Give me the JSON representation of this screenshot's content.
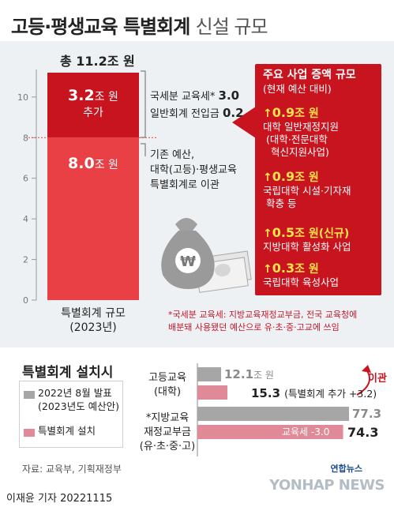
{
  "title": {
    "main": "고등·평생교육 특별회계",
    "sub": "신설 규모"
  },
  "main_bar": {
    "total_label": "총 11.2조 원",
    "top_amount": "3.2",
    "top_unit": "조 원",
    "top_caption": "추가",
    "bottom_amount": "8.0",
    "bottom_unit": "조 원",
    "top_color": "#c7141f",
    "bottom_color": "#e84045",
    "x_label_1": "특별회계 규모",
    "x_label_2": "(2023년)"
  },
  "annotations": {
    "add_line1_label": "국세분 교육세*",
    "add_line1_value": "3.0",
    "add_line2_label": "일반회계 전입금",
    "add_line2_value": "0.2",
    "base_line1": "기존 예산,",
    "base_line2": "대학(고등)·평생교육",
    "base_line3": "특별회계로 이관"
  },
  "panel": {
    "title": "주요 사업 증액 규모",
    "subtitle": "(현재 예산 대비)",
    "items": [
      {
        "amount": "0.9",
        "unit": "조 원",
        "extra": "",
        "desc1": "대학 일반재정지원",
        "desc2": "(대학·전문대학",
        "desc3": "혁신지원사업)"
      },
      {
        "amount": "0.9",
        "unit": "조 원",
        "extra": "",
        "desc1": "국립대학 시설·기자재",
        "desc2": "확충 등",
        "desc3": ""
      },
      {
        "amount": "0.5",
        "unit": "조 원",
        "extra": "(신규)",
        "desc1": "지방대학 활성화 사업",
        "desc2": "",
        "desc3": ""
      },
      {
        "amount": "0.3",
        "unit": "조 원",
        "extra": "",
        "desc1": "국립대학 육성사업",
        "desc2": "",
        "desc3": ""
      }
    ]
  },
  "footnote": {
    "line1": "*국세분 교육세: 지방교육재정교부금, 전국 교육청에",
    "line2": "배분돼 사용됐던 예산으로 유·초·중·고교에 쓰임"
  },
  "bottom": {
    "title": "특별회계 설치시",
    "legend": [
      {
        "label1": "2022년 8월 발표",
        "label2": "(2023년도 예산안)",
        "color": "#a6a6a6"
      },
      {
        "label1": "특별회계 설치",
        "label2": "",
        "color": "#df8a96"
      }
    ],
    "group1_label1": "고등교육",
    "group1_label2": "(대학)",
    "group2_label1": "*지방교육",
    "group2_label2": "재정교부금",
    "group2_label3": "(유·초·중·고)",
    "g1_gray_value": "12.1",
    "g1_gray_unit": "조 원",
    "g1_pink_value": "15.3",
    "g1_pink_note": "(특별회계 추가 +3.2)",
    "g2_gray_value": "77.3",
    "g2_pink_value": "74.3",
    "g2_pink_inner": "교육세 -3.0",
    "transfer_label": "이관",
    "source": "자료: 교육부, 기획재정부",
    "byline": "이재윤 기자  20221115"
  },
  "logo": {
    "kor": "연합뉴스",
    "eng": "YONHAP NEWS"
  },
  "chart_data": [
    {
      "type": "bar",
      "stacked": true,
      "categories": [
        "특별회계 규모 (2023년)"
      ],
      "series": [
        {
          "name": "",
          "values": [
            8.0
          ]
        },
        {
          "name": "추가",
          "values": [
            3.2
          ]
        }
      ],
      "total": 11.2,
      "ylim": [
        0,
        11.2
      ],
      "yticks": [
        0,
        2,
        4,
        6,
        8,
        10
      ],
      "grid": false
    },
    {
      "type": "bar",
      "orientation": "horizontal",
      "categories": [
        "고등교육 (대학)",
        "*지방교육 재정교부금 (유·초·중·고)"
      ],
      "series": [
        {
          "name": "2022년 8월 발표 (2023년도 예산안)",
          "values": [
            12.1,
            77.3
          ]
        },
        {
          "name": "특별회계 설치",
          "values": [
            15.3,
            74.3
          ]
        }
      ],
      "xlim": [
        0,
        80
      ]
    }
  ]
}
